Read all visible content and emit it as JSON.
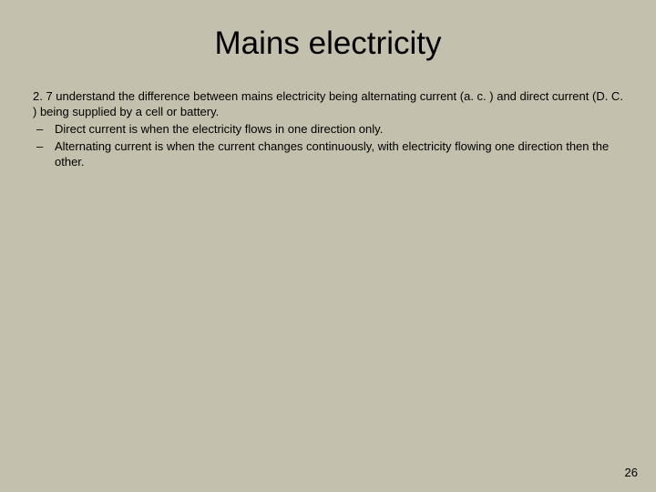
{
  "slide": {
    "background_color": "#c3c1ad",
    "title": {
      "text": "Mains electricity",
      "fontsize": 35,
      "color": "#000000",
      "weight": 400
    },
    "body": {
      "fontsize": 13,
      "line_height": 1.3,
      "color": "#000000",
      "intro": "2. 7 understand the difference between mains electricity being alternating current (a. c. ) and direct current (D. C. ) being supplied by a cell or battery.",
      "bullets": [
        "Direct current is when the electricity flows in one direction only.",
        "Alternating current is when the current changes continuously, with electricity flowing one direction then the other."
      ]
    },
    "page_number": {
      "text": "26",
      "fontsize": 13,
      "color": "#000000"
    }
  }
}
